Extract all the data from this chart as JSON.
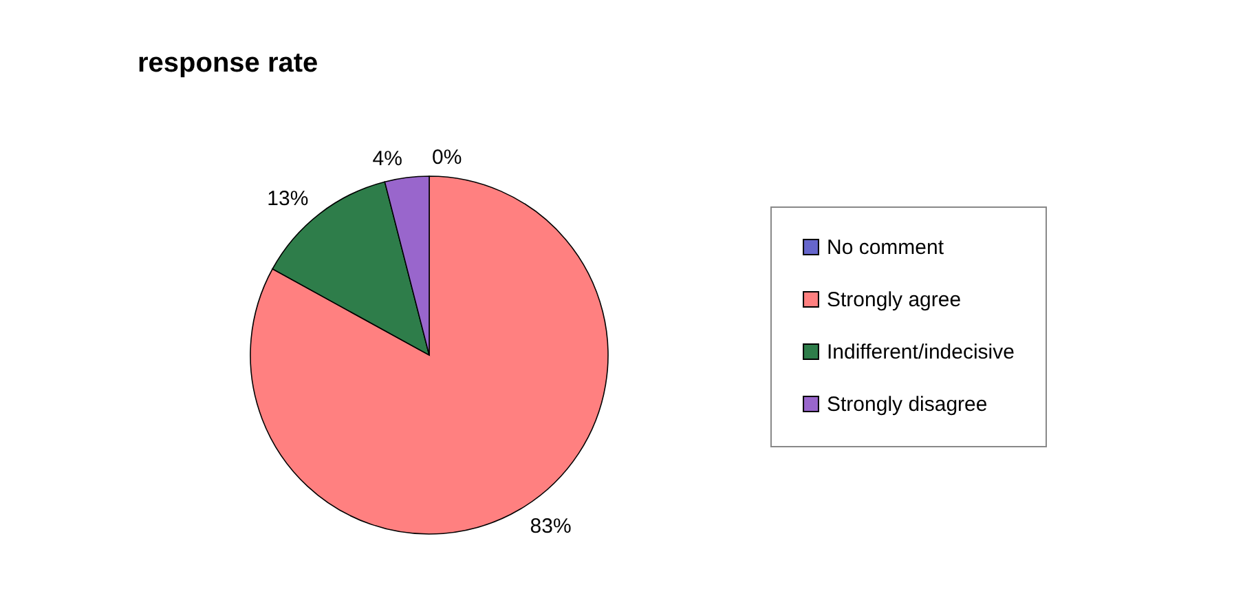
{
  "chart_data": {
    "type": "pie",
    "title": "response rate",
    "categories": [
      "No comment",
      "Strongly agree",
      "Indifferent/indecisive",
      "Strongly disagree"
    ],
    "values": [
      0,
      83,
      13,
      4
    ],
    "colors": [
      "#6666cc",
      "#ff8080",
      "#2e7d4a",
      "#9966cc"
    ],
    "value_labels": [
      "0%",
      "83%",
      "13%",
      "4%"
    ],
    "legend": "right"
  }
}
